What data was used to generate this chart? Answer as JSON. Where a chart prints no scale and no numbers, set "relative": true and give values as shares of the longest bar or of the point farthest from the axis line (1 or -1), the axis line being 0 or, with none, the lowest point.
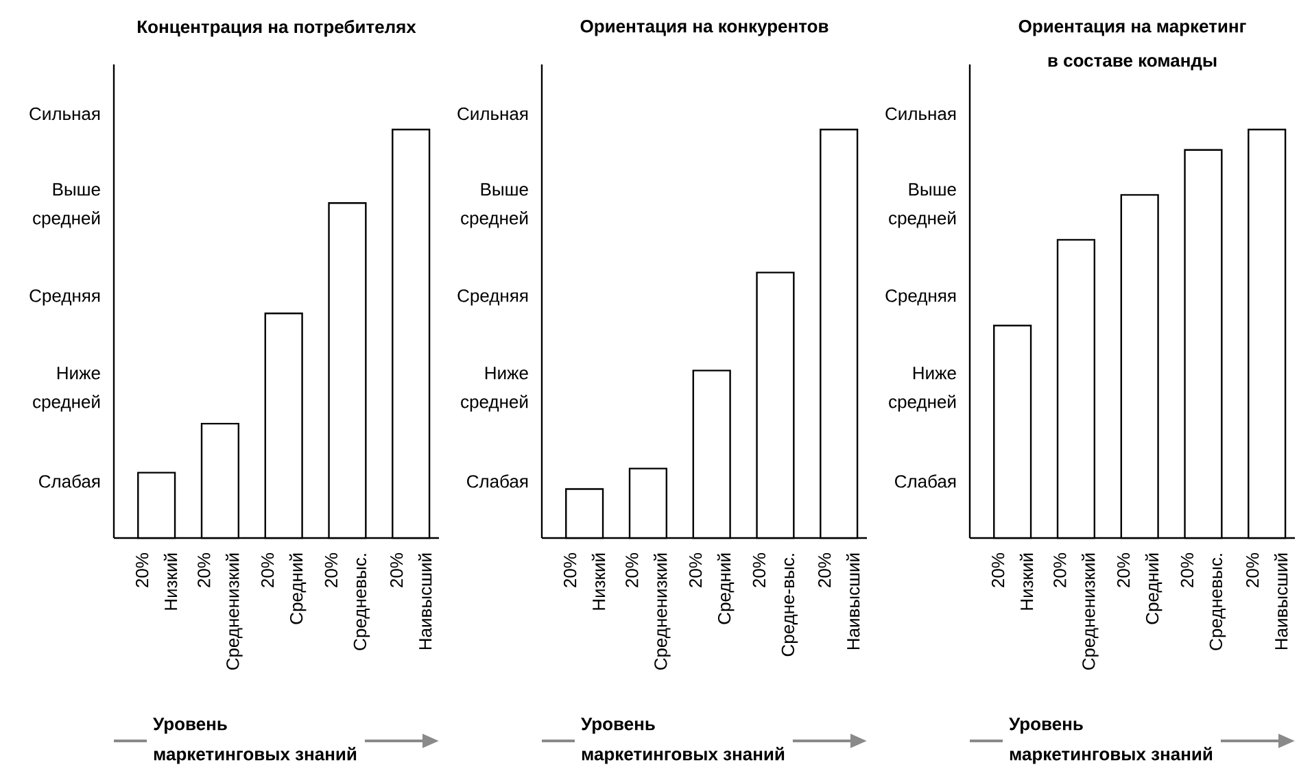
{
  "chart_data": [
    {
      "type": "bar",
      "relative": true,
      "title": "Концентрация на потребителях",
      "xlabel": "Уровень\nмаркетинговых знаний",
      "categories": [
        "20%\nНизкий",
        "20%\nСредненизкий",
        "20%\nСредний",
        "20%\nСредневыс.",
        "20%\nНаивысший"
      ],
      "values": [
        0.16,
        0.28,
        0.55,
        0.82,
        1
      ],
      "color": "#ffffff",
      "annotations": [
        "Сильная",
        "Выше\nсредней",
        "Средняя",
        "Ниже\nсредней",
        "Слабая"
      ]
    },
    {
      "type": "bar",
      "relative": true,
      "title": "Ориентация на конкурентов",
      "xlabel": "Уровень\nмаркетинговых знаний",
      "categories": [
        "20%\nНизкий",
        "20%\nСредненизкий",
        "20%\nСредний",
        "20%\nСредне-выс.",
        "20%\nНаивысший"
      ],
      "values": [
        0.12,
        0.17,
        0.41,
        0.65,
        1
      ],
      "color": "#ffffff",
      "annotations": [
        "Сильная",
        "Выше\nсредней",
        "Средняя",
        "Ниже\nсредней",
        "Слабая"
      ]
    },
    {
      "type": "bar",
      "relative": true,
      "title": "Ориентация на маркетинг\nв составе команды",
      "xlabel": "Уровень\nмаркетинговых знаний",
      "categories": [
        "20%\nНизкий",
        "20%\nСредненизкий",
        "20%\nСредний",
        "20%\nСредневыс.",
        "20%\nНаивысший"
      ],
      "values": [
        0.52,
        0.73,
        0.84,
        0.95,
        1
      ],
      "color": "#ffffff",
      "annotations": [
        "Сильная",
        "Выше\nсредней",
        "Средняя",
        "Ниже\nсредней",
        "Слабая"
      ]
    }
  ]
}
